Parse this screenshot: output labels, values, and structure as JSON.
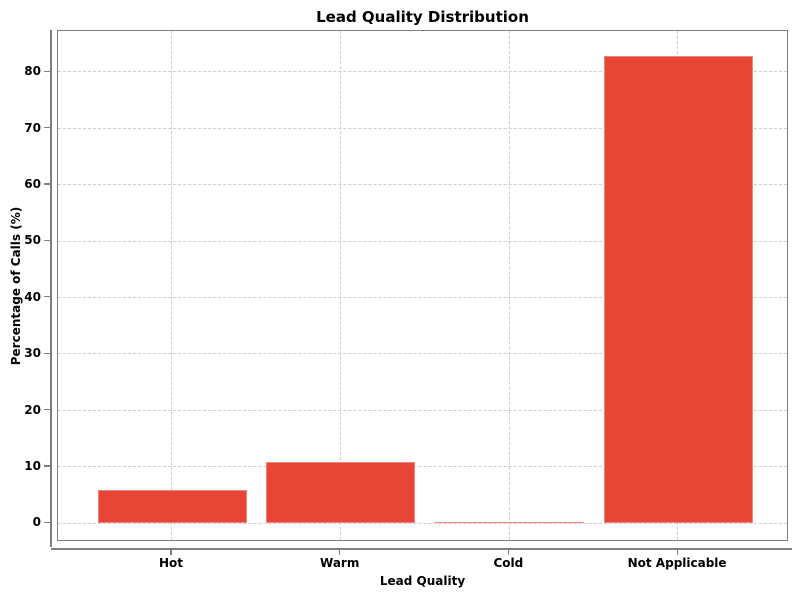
{
  "chart_data": {
    "type": "bar",
    "title": "Lead Quality Distribution",
    "xlabel": "Lead Quality",
    "ylabel": "Percentage of Calls (%)",
    "categories": [
      "Hot",
      "Warm",
      "Cold",
      "Not Applicable"
    ],
    "values": [
      5.9,
      10.9,
      0.3,
      82.9
    ],
    "yticks": [
      0,
      10,
      20,
      30,
      40,
      50,
      60,
      70,
      80
    ],
    "ytick_labels": [
      "0",
      "10",
      "20",
      "30",
      "40",
      "50",
      "60",
      "70",
      "80"
    ],
    "ylim": [
      -3.3,
      87.3
    ],
    "grid": true,
    "grid_style": "dashed",
    "legend_position": "none",
    "colors": {
      "bar": "#e74536",
      "grid": "#cdcdcd",
      "frame": "#7f7f7f",
      "spine": "#7f7f7f",
      "text": "#000000",
      "background": "#ffffff"
    }
  }
}
